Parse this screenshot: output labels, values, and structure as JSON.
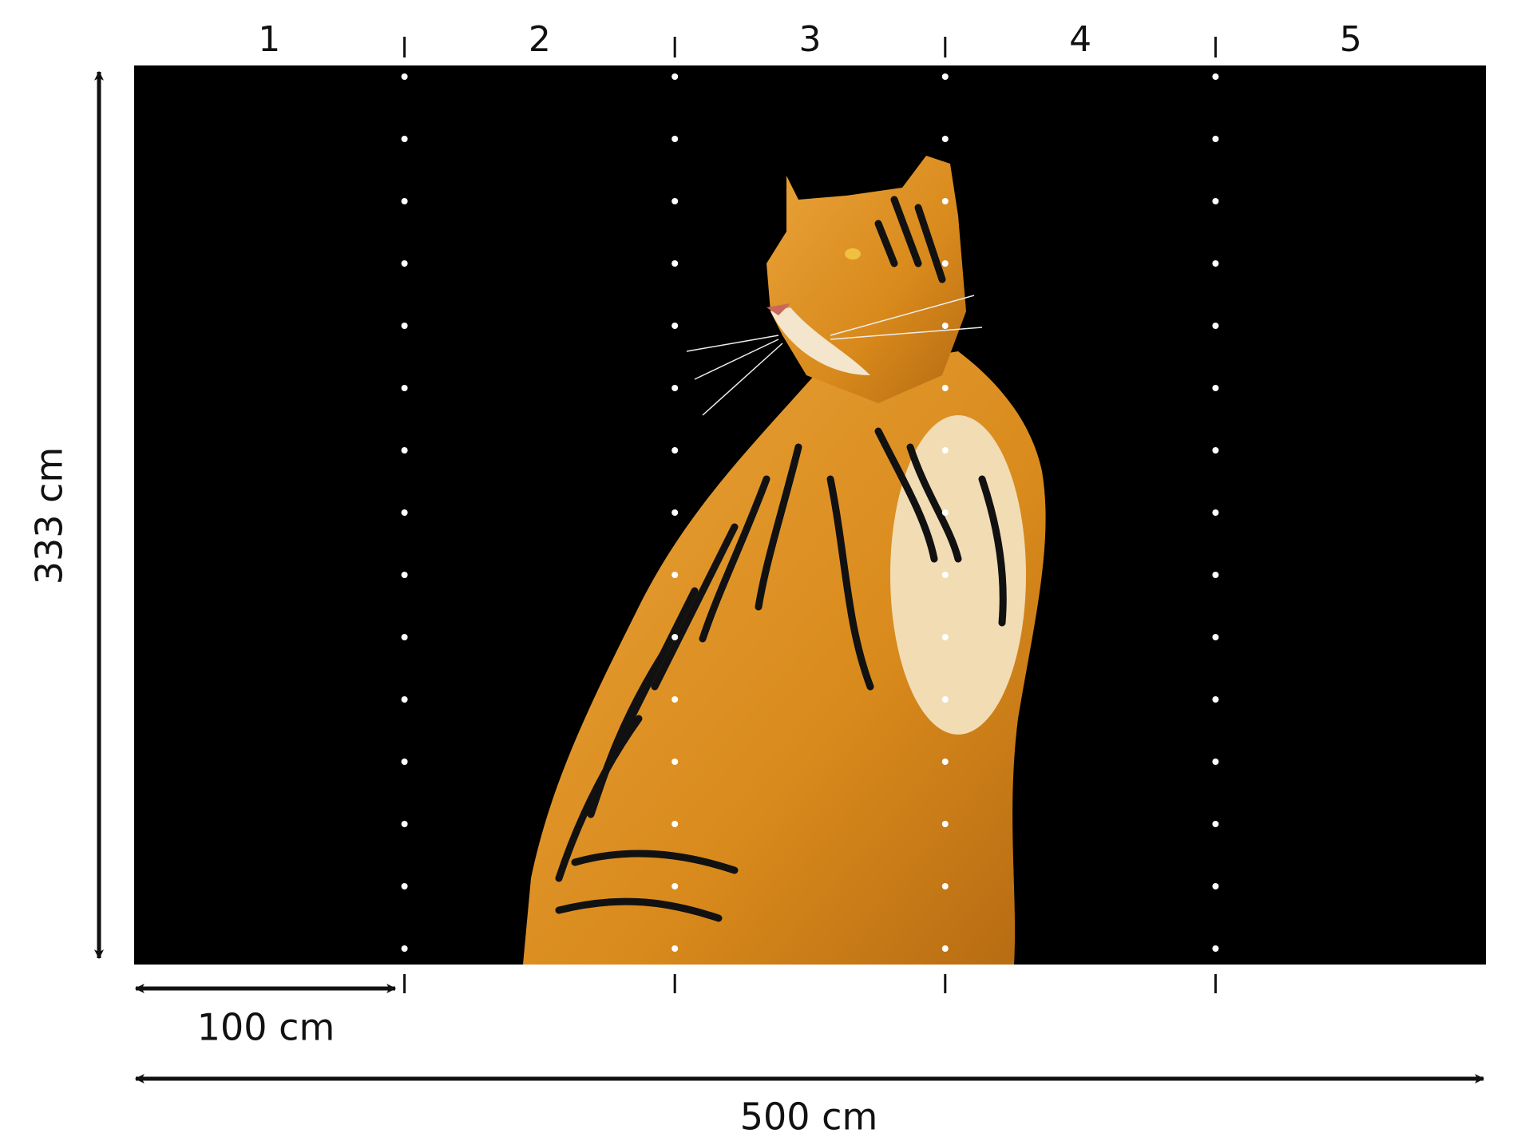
{
  "panels": {
    "labels": [
      "1",
      "2",
      "3",
      "4",
      "5"
    ]
  },
  "dimensions": {
    "height": "333 cm",
    "panel_width": "100 cm",
    "total_width": "500 cm"
  }
}
